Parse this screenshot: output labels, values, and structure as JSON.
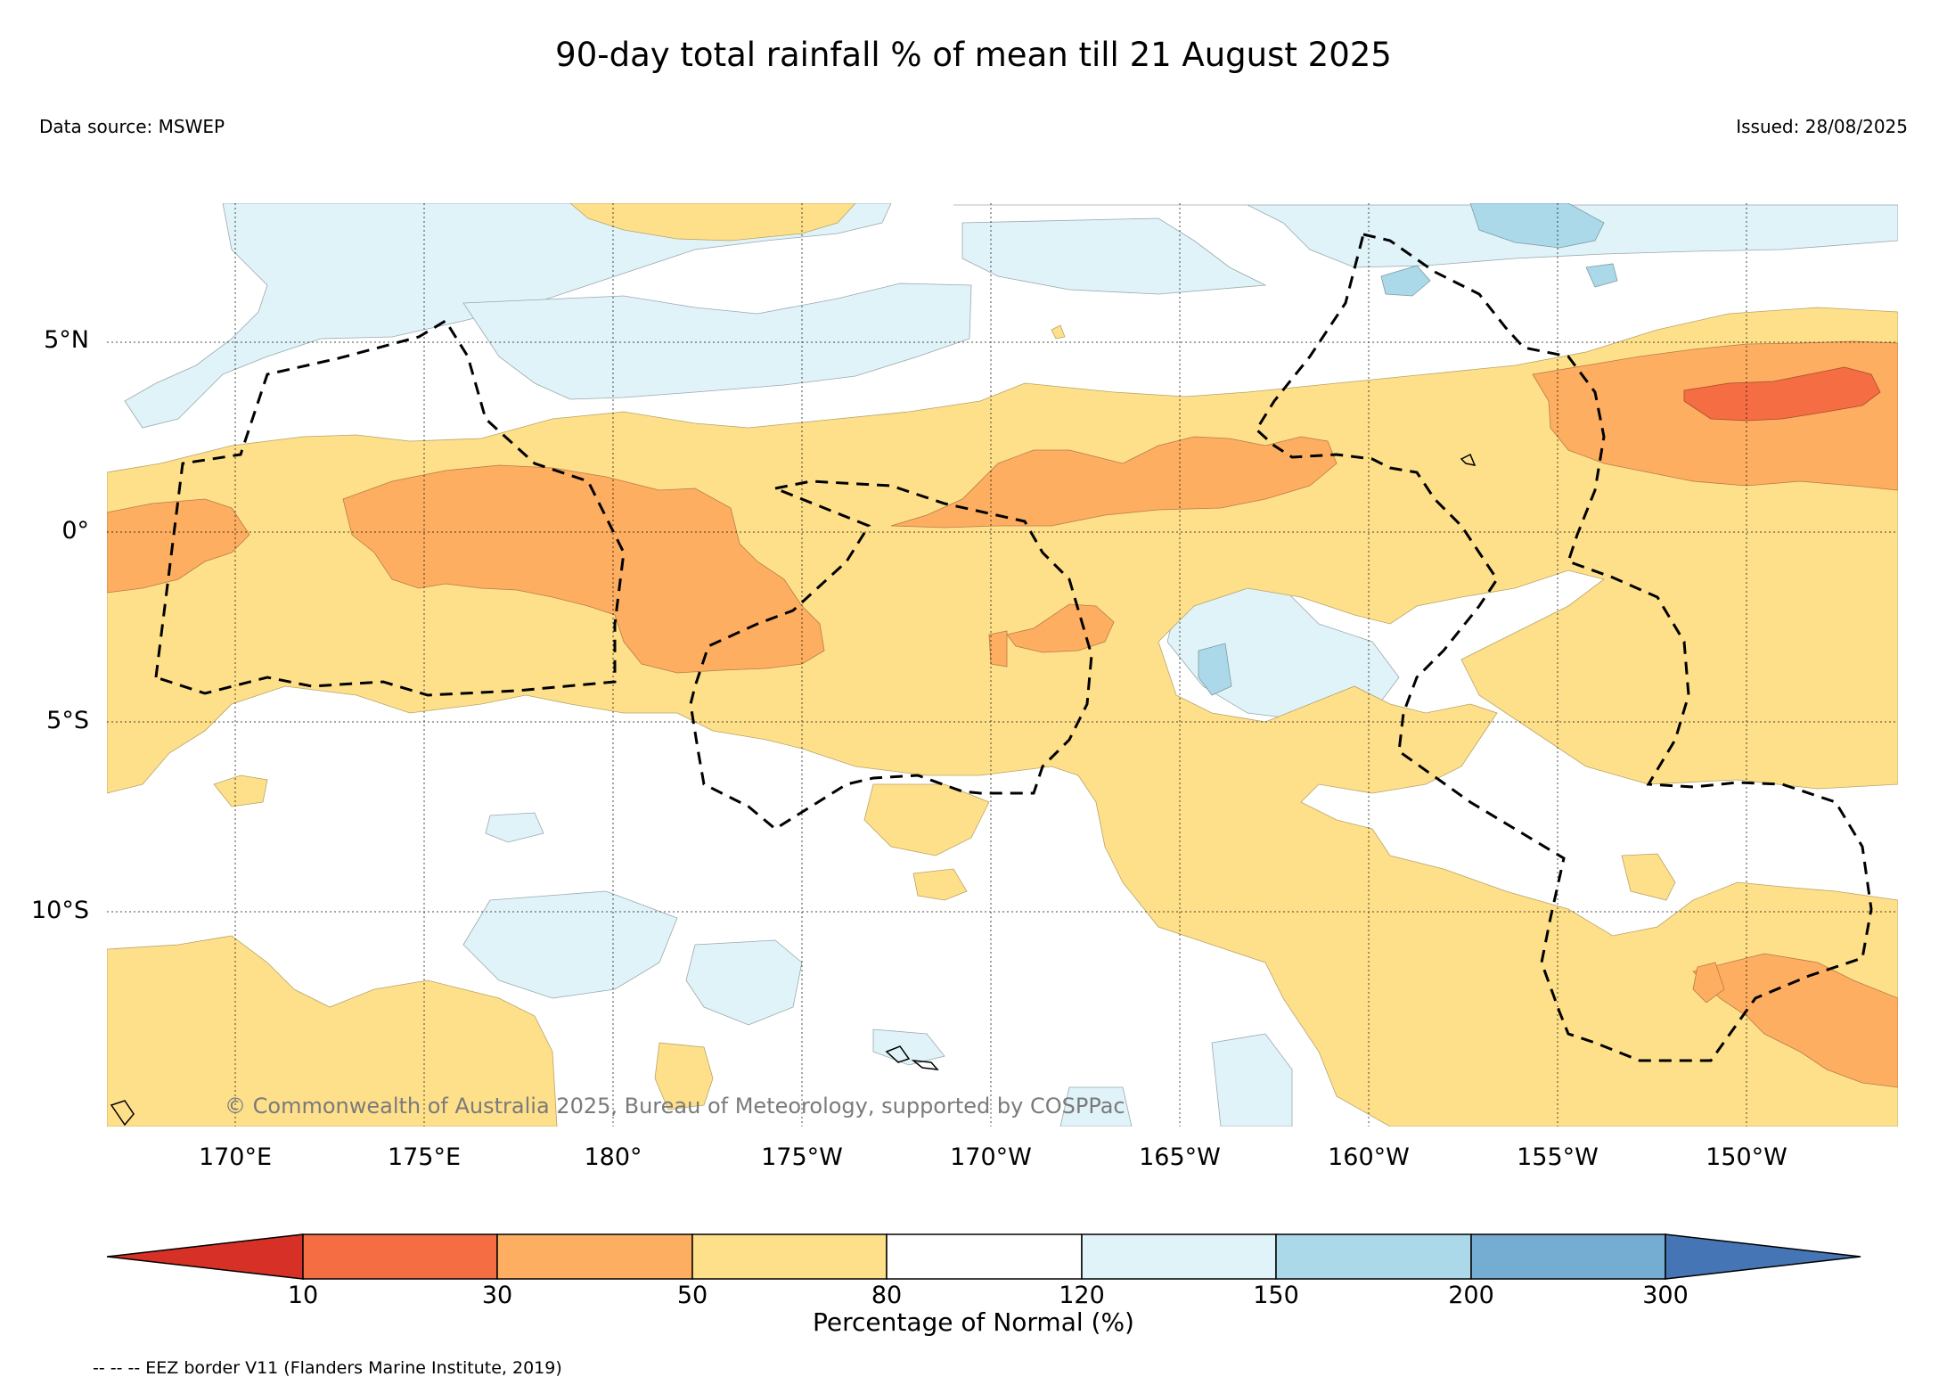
{
  "title": "90-day total rainfall % of mean till 21 August 2025",
  "data_source": "Data source: MSWEP",
  "issued": "Issued: 28/08/2025",
  "copyright": "© Commonwealth of Australia 2025, Bureau of Meteorology, supported by COSPPac",
  "eez_note": "-- -- -- EEZ border V11 (Flanders Marine Institute, 2019)",
  "lat_labels": [
    "5°N",
    "0°",
    "5°S",
    "10°S"
  ],
  "lon_labels": [
    "170°E",
    "175°E",
    "180°",
    "175°W",
    "170°W",
    "165°W",
    "160°W",
    "155°W",
    "150°W"
  ],
  "colorbar": {
    "title": "Percentage of Normal (%)",
    "ticks": [
      "10",
      "30",
      "50",
      "80",
      "120",
      "150",
      "200",
      "300"
    ],
    "colors": [
      "#d73027",
      "#f46d43",
      "#fdae61",
      "#fee08b",
      "#ffffff",
      "#e0f3f8",
      "#abd9e9",
      "#74add1",
      "#4575b4"
    ]
  },
  "map_colors": {
    "below_80": "#fee08b",
    "below_50": "#fdae61",
    "below_30": "#f46d43",
    "above_120": "#e0f3f8",
    "above_150": "#abd9e9",
    "eez_line": "#000000"
  }
}
